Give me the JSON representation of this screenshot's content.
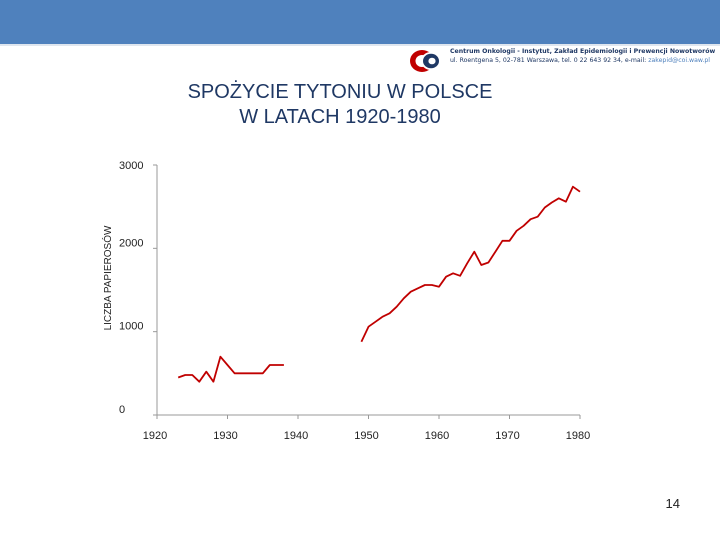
{
  "header": {
    "logo_icon": "institute-logo-icon",
    "logo_line1": "Centrum Onkologii - Instytut, Zakład Epidemiologii i Prewencji Nowotworów",
    "logo_line2": "ul. Roentgena 5, 02-781 Warszawa, tel. 0 22 643 92 34, e-mail:",
    "logo_email": "zakepid@coi.waw.pl"
  },
  "slide": {
    "title_line1": "SPOŻYCIE TYTONIU W POLSCE",
    "title_line2": "W LATACH 1920-1980",
    "page_number": "14"
  },
  "colors": {
    "top_bar": "#4f81bd",
    "title": "#1f3864",
    "series": "#c00000",
    "axis": "#999999"
  },
  "chart_data": {
    "type": "line",
    "ylabel": "LICZBA PAPIEROSÓW",
    "xlabel": "",
    "xlim": [
      1920,
      1980
    ],
    "ylim": [
      0,
      3000
    ],
    "xticks": [
      1920,
      1930,
      1940,
      1950,
      1960,
      1970,
      1980
    ],
    "yticks": [
      0,
      1000,
      2000,
      3000
    ],
    "grid": false,
    "legend": "none",
    "series": [
      {
        "segments": [
          {
            "x": [
              1923,
              1924,
              1925,
              1926,
              1927,
              1928,
              1929,
              1930,
              1931,
              1932,
              1933,
              1934,
              1935,
              1936,
              1937,
              1938
            ],
            "y": [
              450,
              480,
              480,
              400,
              520,
              400,
              700,
              600,
              500,
              500,
              500,
              500,
              500,
              600,
              600,
              600
            ]
          },
          {
            "x": [
              1949,
              1950,
              1951,
              1952,
              1953,
              1954,
              1955,
              1956,
              1957,
              1958,
              1959,
              1960,
              1961,
              1962,
              1963,
              1964,
              1965,
              1966,
              1967,
              1968,
              1969,
              1970,
              1971,
              1972,
              1973,
              1974,
              1975,
              1976,
              1977,
              1978,
              1979,
              1980
            ],
            "y": [
              880,
              1060,
              1120,
              1180,
              1220,
              1300,
              1400,
              1480,
              1520,
              1560,
              1560,
              1540,
              1660,
              1700,
              1670,
              1820,
              1960,
              1800,
              1830,
              1960,
              2090,
              2090,
              2210,
              2270,
              2350,
              2380,
              2490,
              2550,
              2600,
              2560,
              2740,
              2680
            ]
          }
        ]
      }
    ]
  }
}
